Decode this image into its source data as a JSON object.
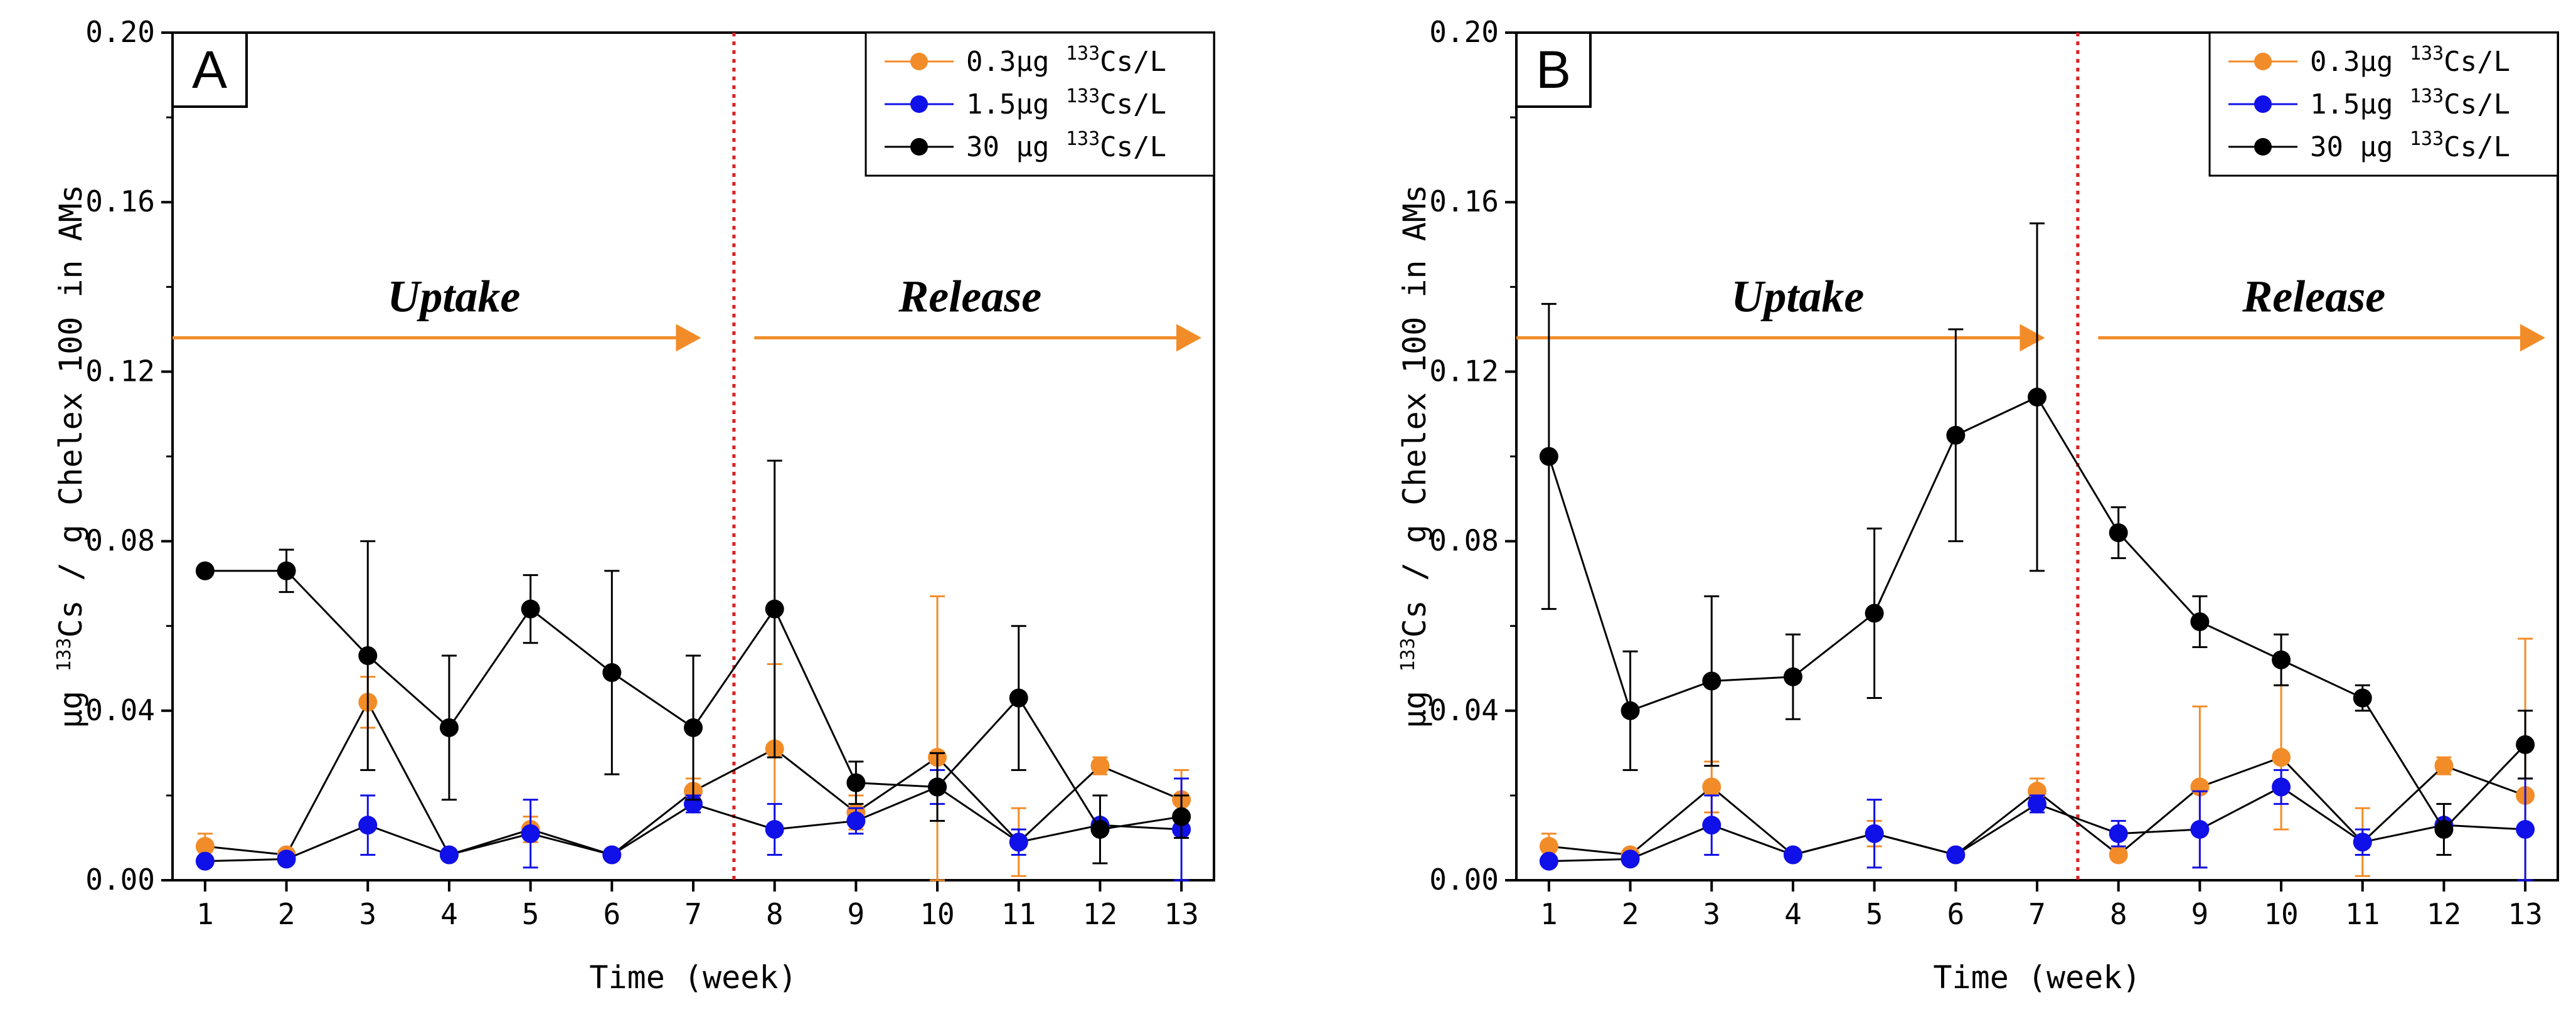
{
  "chart_data": [
    {
      "type": "line",
      "panel_label": "A",
      "xlabel": "Time (week)",
      "ylabel": {
        "prefix": "μg ",
        "sup": "133",
        "main": "Cs / g Chelex 100 in AMs"
      },
      "x": [
        1,
        2,
        3,
        4,
        5,
        6,
        7,
        8,
        9,
        10,
        11,
        12,
        13
      ],
      "xlim": [
        0.6,
        13.4
      ],
      "ylim": [
        0,
        0.2
      ],
      "yticks": [
        "0.00",
        "0.04",
        "0.08",
        "0.12",
        "0.16",
        "0.20"
      ],
      "ytick_values": [
        0,
        0.04,
        0.08,
        0.12,
        0.16,
        0.2
      ],
      "grid": false,
      "legend_position": "top-right",
      "divider_x": 7.5,
      "phases": [
        {
          "label": "Uptake",
          "from": 0.6,
          "to": 7.25
        },
        {
          "label": "Release",
          "from": 7.75,
          "to": 13.4
        }
      ],
      "series": [
        {
          "name": {
            "prefix": "0.3μg ",
            "sup": "133",
            "suffix": "Cs/L"
          },
          "color": "#F28C28",
          "values": [
            0.008,
            0.006,
            0.042,
            0.006,
            0.012,
            0.006,
            0.021,
            0.031,
            0.016,
            0.029,
            0.009,
            0.027,
            0.019
          ],
          "errors": [
            0.003,
            0.001,
            0.006,
            0.001,
            0.003,
            0.001,
            0.003,
            0.02,
            0.004,
            0.038,
            0.008,
            0.002,
            0.007
          ]
        },
        {
          "name": {
            "prefix": "1.5μg ",
            "sup": "133",
            "suffix": "Cs/L"
          },
          "color": "#1010E8",
          "values": [
            0.0045,
            0.005,
            0.013,
            0.006,
            0.011,
            0.006,
            0.018,
            0.012,
            0.014,
            0.022,
            0.009,
            0.013,
            0.012
          ],
          "errors": [
            0.001,
            0.001,
            0.007,
            0.001,
            0.008,
            0.001,
            0.002,
            0.006,
            0.003,
            0.004,
            0.003,
            0.001,
            0.012
          ]
        },
        {
          "name": {
            "prefix": "30 μg ",
            "sup": "133",
            "suffix": "Cs/L"
          },
          "color": "#000000",
          "values": [
            0.073,
            0.073,
            0.053,
            0.036,
            0.064,
            0.049,
            0.036,
            0.064,
            0.023,
            0.022,
            0.043,
            0.012,
            0.015
          ],
          "errors": [
            0.001,
            0.005,
            0.027,
            0.017,
            0.008,
            0.024,
            0.017,
            0.035,
            0.005,
            0.008,
            0.017,
            0.008,
            0.005
          ]
        }
      ]
    },
    {
      "type": "line",
      "panel_label": "B",
      "xlabel": "Time (week)",
      "ylabel": {
        "prefix": "μg ",
        "sup": "133",
        "main": "Cs / g Chelex 100 in AMs"
      },
      "x": [
        1,
        2,
        3,
        4,
        5,
        6,
        7,
        8,
        9,
        10,
        11,
        12,
        13
      ],
      "xlim": [
        0.6,
        13.4
      ],
      "ylim": [
        0,
        0.2
      ],
      "yticks": [
        "0.00",
        "0.04",
        "0.08",
        "0.12",
        "0.16",
        "0.20"
      ],
      "ytick_values": [
        0,
        0.04,
        0.08,
        0.12,
        0.16,
        0.2
      ],
      "grid": false,
      "legend_position": "top-right",
      "divider_x": 7.5,
      "phases": [
        {
          "label": "Uptake",
          "from": 0.6,
          "to": 7.25
        },
        {
          "label": "Release",
          "from": 7.75,
          "to": 13.4
        }
      ],
      "series": [
        {
          "name": {
            "prefix": "0.3μg ",
            "sup": "133",
            "suffix": "Cs/L"
          },
          "color": "#F28C28",
          "values": [
            0.008,
            0.006,
            0.022,
            0.006,
            0.011,
            0.006,
            0.021,
            0.006,
            0.022,
            0.029,
            0.009,
            0.027,
            0.02
          ],
          "errors": [
            0.003,
            0.001,
            0.006,
            0.001,
            0.003,
            0.001,
            0.003,
            0.001,
            0.019,
            0.017,
            0.008,
            0.002,
            0.037
          ]
        },
        {
          "name": {
            "prefix": "1.5μg ",
            "sup": "133",
            "suffix": "Cs/L"
          },
          "color": "#1010E8",
          "values": [
            0.0045,
            0.005,
            0.013,
            0.006,
            0.011,
            0.006,
            0.018,
            0.011,
            0.012,
            0.022,
            0.009,
            0.013,
            0.012
          ],
          "errors": [
            0.001,
            0.001,
            0.007,
            0.001,
            0.008,
            0.001,
            0.002,
            0.003,
            0.009,
            0.004,
            0.003,
            0.001,
            0.012
          ]
        },
        {
          "name": {
            "prefix": "30 μg ",
            "sup": "133",
            "suffix": "Cs/L"
          },
          "color": "#000000",
          "values": [
            0.1,
            0.04,
            0.047,
            0.048,
            0.063,
            0.105,
            0.114,
            0.082,
            0.061,
            0.052,
            0.043,
            0.012,
            0.032
          ],
          "errors": [
            0.036,
            0.014,
            0.02,
            0.01,
            0.02,
            0.025,
            0.041,
            0.006,
            0.006,
            0.006,
            0.003,
            0.006,
            0.008
          ]
        }
      ]
    }
  ]
}
